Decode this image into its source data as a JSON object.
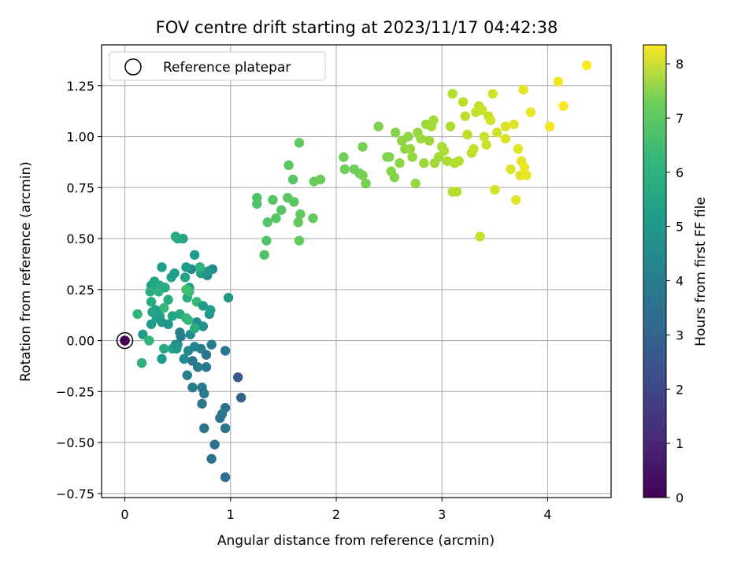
{
  "chart_data": {
    "type": "scatter",
    "title": "FOV centre drift starting at 2023/11/17 04:42:38",
    "xlabel": "Angular distance from reference (arcmin)",
    "ylabel": "Rotation from reference (arcmin)",
    "xlim": [
      -0.22,
      4.6
    ],
    "ylim": [
      -0.77,
      1.45
    ],
    "x_ticks": [
      0,
      1,
      2,
      3,
      4
    ],
    "x_tick_labels": [
      "0",
      "1",
      "2",
      "3",
      "4"
    ],
    "y_ticks": [
      -0.75,
      -0.5,
      -0.25,
      0.0,
      0.25,
      0.5,
      0.75,
      1.0,
      1.25
    ],
    "y_tick_labels": [
      "−0.75",
      "−0.50",
      "−0.25",
      "0.00",
      "0.25",
      "0.50",
      "0.75",
      "1.00",
      "1.25"
    ],
    "grid": true,
    "legend": {
      "placement": "top-left",
      "entries": [
        {
          "label": "Reference platepar",
          "marker": "hollow-circle"
        }
      ]
    },
    "colorbar": {
      "label": "Hours from first FF file",
      "colormap": "viridis",
      "range": [
        0,
        8.35
      ],
      "ticks": [
        0,
        1,
        2,
        3,
        4,
        5,
        6,
        7,
        8
      ],
      "tick_labels": [
        "0",
        "1",
        "2",
        "3",
        "4",
        "5",
        "6",
        "7",
        "8"
      ]
    },
    "reference_point": {
      "x": 0,
      "y": 0,
      "c": 0
    },
    "points": [
      [
        0.0,
        0.0,
        0.0
      ],
      [
        1.07,
        -0.18,
        2.3
      ],
      [
        1.1,
        -0.28,
        2.6
      ],
      [
        0.95,
        -0.67,
        3.0
      ],
      [
        0.82,
        -0.58,
        3.1
      ],
      [
        0.85,
        -0.51,
        3.1
      ],
      [
        0.75,
        -0.43,
        3.2
      ],
      [
        0.95,
        -0.43,
        3.2
      ],
      [
        0.9,
        -0.38,
        3.2
      ],
      [
        0.92,
        -0.36,
        3.3
      ],
      [
        0.95,
        -0.33,
        3.3
      ],
      [
        0.73,
        -0.31,
        3.3
      ],
      [
        0.75,
        -0.26,
        3.4
      ],
      [
        0.73,
        -0.23,
        3.4
      ],
      [
        0.64,
        -0.23,
        3.5
      ],
      [
        0.59,
        -0.17,
        3.5
      ],
      [
        0.69,
        -0.13,
        3.5
      ],
      [
        0.77,
        -0.13,
        3.4
      ],
      [
        0.64,
        -0.1,
        3.3
      ],
      [
        0.77,
        -0.07,
        3.2
      ],
      [
        0.95,
        -0.05,
        3.3
      ],
      [
        0.82,
        -0.02,
        3.5
      ],
      [
        0.72,
        -0.04,
        3.6
      ],
      [
        0.66,
        -0.03,
        3.8
      ],
      [
        0.6,
        -0.05,
        3.9
      ],
      [
        0.56,
        -0.09,
        4.0
      ],
      [
        0.5,
        -0.02,
        4.0
      ],
      [
        0.52,
        0.04,
        3.7
      ],
      [
        0.62,
        0.03,
        4.1
      ],
      [
        0.68,
        0.09,
        4.1
      ],
      [
        0.74,
        0.07,
        4.2
      ],
      [
        0.8,
        0.13,
        4.2
      ],
      [
        0.98,
        0.21,
        4.4
      ],
      [
        0.81,
        0.15,
        4.6
      ],
      [
        0.78,
        0.32,
        4.0
      ],
      [
        0.83,
        0.35,
        3.9
      ],
      [
        0.79,
        0.34,
        4.4
      ],
      [
        0.72,
        0.33,
        4.6
      ],
      [
        0.63,
        0.35,
        4.0
      ],
      [
        0.66,
        0.42,
        4.5
      ],
      [
        0.55,
        0.5,
        4.9
      ],
      [
        0.5,
        0.5,
        5.0
      ],
      [
        0.48,
        0.51,
        5.1
      ],
      [
        0.58,
        0.36,
        4.6
      ],
      [
        0.61,
        0.26,
        4.6
      ],
      [
        0.59,
        0.21,
        5.1
      ],
      [
        0.35,
        0.36,
        4.7
      ],
      [
        0.44,
        0.31,
        4.7
      ],
      [
        0.47,
        0.33,
        4.6
      ],
      [
        0.57,
        0.31,
        4.8
      ],
      [
        0.71,
        0.36,
        5.3
      ],
      [
        0.25,
        0.27,
        4.8
      ],
      [
        0.28,
        0.29,
        4.9
      ],
      [
        0.33,
        0.27,
        5.0
      ],
      [
        0.38,
        0.26,
        5.1
      ],
      [
        0.24,
        0.24,
        5.2
      ],
      [
        0.32,
        0.24,
        5.3
      ],
      [
        0.25,
        0.19,
        5.0
      ],
      [
        0.41,
        0.2,
        5.1
      ],
      [
        0.29,
        0.15,
        4.6
      ],
      [
        0.37,
        0.16,
        5.6
      ],
      [
        0.26,
        0.14,
        4.8
      ],
      [
        0.33,
        0.12,
        4.8
      ],
      [
        0.3,
        0.11,
        4.7
      ],
      [
        0.35,
        0.09,
        4.5
      ],
      [
        0.41,
        0.08,
        4.3
      ],
      [
        0.25,
        0.08,
        4.6
      ],
      [
        0.12,
        0.13,
        5.4
      ],
      [
        0.45,
        0.12,
        4.9
      ],
      [
        0.52,
        0.13,
        5.0
      ],
      [
        0.58,
        0.11,
        5.4
      ],
      [
        0.6,
        0.1,
        5.6
      ],
      [
        0.66,
        0.06,
        5.2
      ],
      [
        0.68,
        0.19,
        5.6
      ],
      [
        0.74,
        0.17,
        4.5
      ],
      [
        0.61,
        0.24,
        5.7
      ],
      [
        0.58,
        0.25,
        5.8
      ],
      [
        0.17,
        0.03,
        4.6
      ],
      [
        0.23,
        0.0,
        5.5
      ],
      [
        0.37,
        -0.04,
        5.0
      ],
      [
        0.45,
        -0.04,
        4.9
      ],
      [
        0.48,
        -0.02,
        4.2
      ],
      [
        0.49,
        -0.04,
        4.4
      ],
      [
        0.35,
        -0.09,
        4.6
      ],
      [
        0.16,
        -0.11,
        5.3
      ],
      [
        0.53,
        0.02,
        3.6
      ],
      [
        1.25,
        0.7,
        6.0
      ],
      [
        1.25,
        0.67,
        6.0
      ],
      [
        1.32,
        0.42,
        6.0
      ],
      [
        1.34,
        0.49,
        6.0
      ],
      [
        1.35,
        0.58,
        6.1
      ],
      [
        1.4,
        0.69,
        6.1
      ],
      [
        1.43,
        0.6,
        6.1
      ],
      [
        1.48,
        0.64,
        6.1
      ],
      [
        1.54,
        0.7,
        6.2
      ],
      [
        1.6,
        0.68,
        6.2
      ],
      [
        1.55,
        0.86,
        6.2
      ],
      [
        1.59,
        0.79,
        6.2
      ],
      [
        1.64,
        0.58,
        6.3
      ],
      [
        1.65,
        0.49,
        6.3
      ],
      [
        1.66,
        0.62,
        6.3
      ],
      [
        1.65,
        0.97,
        6.3
      ],
      [
        1.78,
        0.6,
        6.3
      ],
      [
        1.79,
        0.78,
        6.4
      ],
      [
        1.85,
        0.79,
        6.4
      ],
      [
        2.07,
        0.9,
        6.5
      ],
      [
        2.08,
        0.84,
        6.5
      ],
      [
        2.17,
        0.84,
        6.5
      ],
      [
        2.22,
        0.82,
        6.5
      ],
      [
        2.25,
        0.95,
        6.6
      ],
      [
        2.28,
        0.77,
        6.6
      ],
      [
        2.25,
        0.81,
        6.6
      ],
      [
        2.4,
        1.05,
        6.7
      ],
      [
        2.48,
        0.9,
        6.7
      ],
      [
        2.5,
        0.9,
        6.7
      ],
      [
        2.52,
        0.83,
        6.8
      ],
      [
        2.55,
        0.8,
        6.8
      ],
      [
        2.56,
        1.02,
        6.8
      ],
      [
        2.6,
        0.87,
        6.9
      ],
      [
        2.62,
        0.98,
        6.9
      ],
      [
        2.65,
        0.94,
        6.9
      ],
      [
        2.68,
        1.0,
        6.9
      ],
      [
        2.7,
        0.94,
        7.0
      ],
      [
        2.72,
        0.9,
        7.0
      ],
      [
        2.75,
        0.77,
        7.0
      ],
      [
        2.77,
        1.02,
        7.0
      ],
      [
        2.8,
        0.99,
        7.1
      ],
      [
        2.83,
        0.87,
        7.1
      ],
      [
        2.85,
        1.06,
        7.1
      ],
      [
        2.88,
        0.98,
        7.1
      ],
      [
        2.9,
        1.05,
        7.2
      ],
      [
        2.92,
        1.08,
        7.2
      ],
      [
        2.93,
        0.87,
        7.2
      ],
      [
        2.97,
        0.9,
        7.2
      ],
      [
        3.0,
        0.95,
        7.3
      ],
      [
        3.02,
        0.93,
        7.3
      ],
      [
        3.05,
        0.88,
        7.3
      ],
      [
        3.08,
        1.05,
        7.3
      ],
      [
        3.1,
        1.21,
        7.4
      ],
      [
        3.12,
        0.87,
        7.4
      ],
      [
        3.1,
        0.73,
        7.4
      ],
      [
        3.14,
        0.73,
        7.4
      ],
      [
        3.16,
        0.88,
        7.4
      ],
      [
        3.2,
        1.17,
        7.5
      ],
      [
        3.22,
        1.1,
        7.5
      ],
      [
        3.24,
        1.01,
        7.5
      ],
      [
        3.28,
        0.92,
        7.5
      ],
      [
        3.3,
        0.94,
        7.6
      ],
      [
        3.32,
        1.12,
        7.6
      ],
      [
        3.35,
        1.15,
        7.6
      ],
      [
        3.36,
        0.51,
        7.6
      ],
      [
        3.38,
        1.13,
        7.7
      ],
      [
        3.4,
        1.0,
        7.7
      ],
      [
        3.42,
        0.96,
        7.7
      ],
      [
        3.44,
        1.1,
        7.7
      ],
      [
        3.46,
        1.08,
        7.8
      ],
      [
        3.48,
        1.21,
        7.8
      ],
      [
        3.5,
        0.74,
        7.8
      ],
      [
        3.52,
        1.02,
        7.8
      ],
      [
        3.6,
        1.05,
        7.9
      ],
      [
        3.6,
        0.99,
        7.9
      ],
      [
        3.65,
        0.84,
        7.9
      ],
      [
        3.68,
        1.06,
        7.9
      ],
      [
        3.7,
        0.69,
        8.0
      ],
      [
        3.72,
        0.94,
        8.0
      ],
      [
        3.74,
        0.81,
        8.0
      ],
      [
        3.75,
        0.88,
        8.0
      ],
      [
        3.77,
        1.23,
        8.0
      ],
      [
        3.78,
        0.85,
        8.1
      ],
      [
        3.8,
        0.81,
        8.1
      ],
      [
        3.84,
        1.12,
        8.1
      ],
      [
        4.02,
        1.05,
        8.2
      ],
      [
        4.1,
        1.27,
        8.2
      ],
      [
        4.15,
        1.15,
        8.3
      ],
      [
        4.37,
        1.35,
        8.35
      ]
    ]
  }
}
